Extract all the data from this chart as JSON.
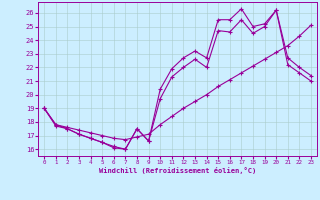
{
  "xlabel": "Windchill (Refroidissement éolien,°C)",
  "bg_color": "#cceeff",
  "line_color": "#990099",
  "grid_color": "#aacccc",
  "xlim": [
    -0.5,
    23.5
  ],
  "ylim": [
    15.5,
    26.8
  ],
  "xticks": [
    0,
    1,
    2,
    3,
    4,
    5,
    6,
    7,
    8,
    9,
    10,
    11,
    12,
    13,
    14,
    15,
    16,
    17,
    18,
    19,
    20,
    21,
    22,
    23
  ],
  "yticks": [
    16,
    17,
    18,
    19,
    20,
    21,
    22,
    23,
    24,
    25,
    26
  ],
  "line1_x": [
    0,
    1,
    2,
    3,
    4,
    5,
    6,
    7,
    8,
    9,
    10,
    11,
    12,
    13,
    14,
    15,
    16,
    17,
    18,
    19,
    20,
    21,
    22,
    23
  ],
  "line1_y": [
    19.0,
    17.7,
    17.5,
    17.1,
    16.8,
    16.5,
    16.1,
    16.0,
    17.5,
    16.6,
    20.4,
    21.9,
    22.7,
    23.2,
    22.7,
    25.5,
    25.5,
    26.3,
    25.0,
    25.2,
    26.2,
    22.7,
    22.0,
    21.4
  ],
  "line2_x": [
    0,
    1,
    2,
    3,
    4,
    5,
    6,
    7,
    8,
    9,
    10,
    11,
    12,
    13,
    14,
    15,
    16,
    17,
    18,
    19,
    20,
    21,
    22,
    23
  ],
  "line2_y": [
    19.0,
    17.8,
    17.5,
    17.1,
    16.8,
    16.5,
    16.2,
    16.0,
    17.5,
    16.6,
    19.7,
    21.3,
    22.0,
    22.6,
    22.0,
    24.7,
    24.6,
    25.5,
    24.5,
    25.0,
    26.2,
    22.2,
    21.6,
    21.0
  ],
  "line3_x": [
    0,
    1,
    2,
    3,
    4,
    5,
    6,
    7,
    8,
    9,
    10,
    11,
    12,
    13,
    14,
    15,
    16,
    17,
    18,
    19,
    20,
    21,
    22,
    23
  ],
  "line3_y": [
    19.0,
    17.8,
    17.6,
    17.4,
    17.2,
    17.0,
    16.8,
    16.7,
    16.9,
    17.1,
    17.8,
    18.4,
    19.0,
    19.5,
    20.0,
    20.6,
    21.1,
    21.6,
    22.1,
    22.6,
    23.1,
    23.6,
    24.3,
    25.1
  ],
  "marker": "+",
  "markersize": 3,
  "linewidth": 0.8
}
